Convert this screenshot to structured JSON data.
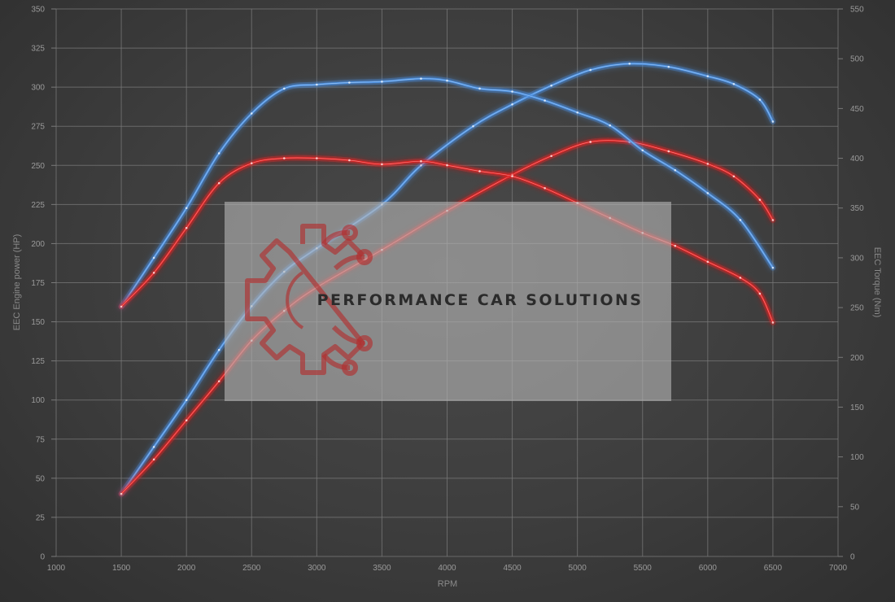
{
  "watermark": {
    "text": "PERFORMANCE CAR SOLUTIONS",
    "logo_icon": "gear-circuit-logo-icon",
    "logo_color": "#b03030"
  },
  "colors": {
    "background": "#3d3d3d",
    "grid": "#7a7a7a",
    "tuned": "#4a90e2",
    "stock": "#e02020"
  },
  "chart_data": {
    "type": "line",
    "title": "",
    "xlabel": "RPM",
    "ylabel_left": "EEC Engine power (HP)",
    "ylabel_right": "EEC Torque (Nm)",
    "xlim": [
      1000,
      7000
    ],
    "ylim_left": [
      0,
      350
    ],
    "ylim_right": [
      0,
      550
    ],
    "x_ticks": [
      1000,
      1500,
      2000,
      2500,
      3000,
      3500,
      4000,
      4500,
      5000,
      5500,
      6000,
      6500,
      7000
    ],
    "y_left_ticks": [
      0,
      25,
      50,
      75,
      100,
      125,
      150,
      175,
      200,
      225,
      250,
      275,
      300,
      325,
      350
    ],
    "y_right_ticks": [
      0,
      50,
      100,
      150,
      200,
      250,
      300,
      350,
      400,
      450,
      500,
      550
    ],
    "grid": true,
    "legend": "none",
    "series": [
      {
        "axis": "left",
        "color": "#4a90e2",
        "x": [
          1500,
          1750,
          2000,
          2250,
          2500,
          2750,
          3000,
          3500,
          3800,
          4200,
          4500,
          4800,
          5100,
          5400,
          5700,
          6000,
          6200,
          6400,
          6500
        ],
        "y": [
          40,
          70,
          100,
          132,
          160,
          182,
          197,
          225,
          250,
          275,
          289,
          301,
          311,
          315,
          313,
          307,
          302,
          292,
          278
        ]
      },
      {
        "axis": "left",
        "color": "#e02020",
        "x": [
          1500,
          1750,
          2000,
          2250,
          2500,
          2750,
          3000,
          3500,
          4000,
          4500,
          4800,
          5100,
          5400,
          5700,
          6000,
          6200,
          6400,
          6500
        ],
        "y": [
          40,
          62,
          87,
          112,
          138,
          157,
          172,
          196,
          221,
          244,
          256,
          265,
          265,
          259,
          251,
          243,
          228,
          215
        ]
      },
      {
        "axis": "right",
        "color": "#4a90e2",
        "x": [
          1500,
          1750,
          2000,
          2250,
          2500,
          2750,
          3000,
          3250,
          3500,
          3800,
          4000,
          4250,
          4500,
          4750,
          5000,
          5250,
          5500,
          5750,
          6000,
          6250,
          6500
        ],
        "y": [
          251,
          300,
          350,
          405,
          445,
          470,
          474,
          476,
          477,
          480,
          478,
          470,
          467,
          458,
          446,
          433,
          408,
          388,
          365,
          338,
          290
        ]
      },
      {
        "axis": "right",
        "color": "#e02020",
        "x": [
          1500,
          1750,
          2000,
          2250,
          2500,
          2750,
          3000,
          3250,
          3500,
          3800,
          4000,
          4250,
          4500,
          4750,
          5000,
          5250,
          5500,
          5750,
          6000,
          6250,
          6400,
          6500
        ],
        "y": [
          251,
          285,
          330,
          375,
          395,
          400,
          400,
          398,
          394,
          397,
          393,
          387,
          382,
          370,
          355,
          340,
          325,
          312,
          296,
          280,
          264,
          235
        ]
      }
    ]
  }
}
